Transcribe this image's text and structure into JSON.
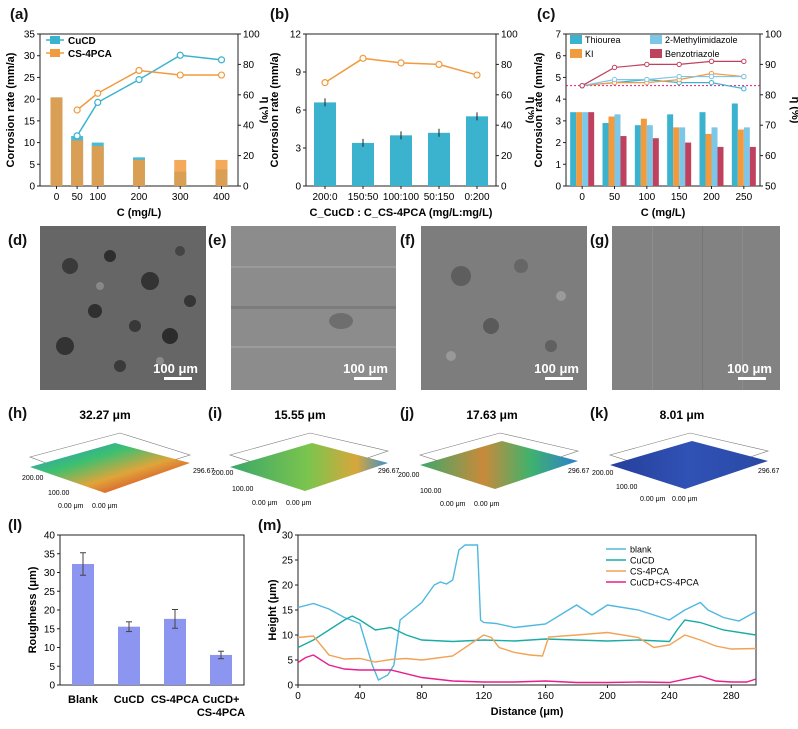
{
  "labels": {
    "a": "(a)",
    "b": "(b)",
    "c": "(c)",
    "d": "(d)",
    "e": "(e)",
    "f": "(f)",
    "g": "(g)",
    "h": "(h)",
    "i": "(i)",
    "j": "(j)",
    "k": "(k)",
    "l": "(l)",
    "m": "(m)"
  },
  "sem_scale": "100 μm",
  "surface3d": [
    {
      "height": "32.27 μm",
      "x": "296.67",
      "y": "200.00",
      "y2": "100.00",
      "origin": "0.00 μm",
      "origin2": "0.00 μm"
    },
    {
      "height": "15.55 μm",
      "x": "296.67",
      "y": "200.00",
      "y2": "100.00",
      "origin": "0.00 μm",
      "origin2": "0.00 μm"
    },
    {
      "height": "17.63 μm",
      "x": "296.67",
      "y": "200.00",
      "y2": "100.00",
      "origin": "0.00 μm",
      "origin2": "0.00 μm"
    },
    {
      "height": "8.01 μm",
      "x": "296.67",
      "y": "200.00",
      "y2": "100.00",
      "origin": "0.00 μm",
      "origin2": "0.00 μm"
    }
  ],
  "colors": {
    "teal": "#3bb3cf",
    "orange": "#f29a3e",
    "blue_bar": "#8c95ef",
    "red": "#c0415e",
    "pink": "#e8148a",
    "lightblue": "#7cc6e8"
  },
  "chart_data": [
    {
      "id": "a",
      "type": "bar",
      "xlabel": "C (mg/L)",
      "ylabel": "Corrosion rate (mm/a)",
      "y2label": "η (%)",
      "categories": [
        "0",
        "50",
        "100",
        "200",
        "300",
        "400"
      ],
      "x": [
        0,
        50,
        100,
        200,
        300,
        400
      ],
      "ylim": [
        0,
        35
      ],
      "y2lim": [
        0,
        100
      ],
      "xlim": [
        -40,
        440
      ],
      "yticks": [
        "0",
        "5",
        "10",
        "15",
        "20",
        "25",
        "30",
        "35"
      ],
      "y2ticks": [
        "0",
        "20",
        "40",
        "60",
        "80",
        "100"
      ],
      "legend": [
        "CuCD",
        "CS-4PCA"
      ],
      "series": [
        {
          "name": "CuCD",
          "bar_values": [
            20.4,
            11.5,
            10.0,
            6.6,
            3.3,
            3.8
          ],
          "eta": [
            null,
            33,
            55,
            70,
            86,
            83
          ]
        },
        {
          "name": "CS-4PCA",
          "bar_values": [
            20.4,
            10.5,
            9.2,
            6.0,
            6.0,
            6.0
          ],
          "eta": [
            null,
            50,
            61,
            76,
            73,
            73
          ]
        }
      ]
    },
    {
      "id": "b",
      "type": "bar",
      "xlabel": "C_CuCD : C_CS-4PCA (mg/L:mg/L)",
      "ylabel": "Corrosion rate (mm/a)",
      "y2label": "η (%)",
      "categories": [
        "200:0",
        "150:50",
        "100:100",
        "50:150",
        "0:200"
      ],
      "values": [
        6.6,
        3.4,
        4.0,
        4.2,
        5.5
      ],
      "eta": [
        68,
        84,
        81,
        80,
        73
      ],
      "ylim": [
        0,
        12
      ],
      "y2lim": [
        0,
        100
      ],
      "yticks": [
        "0",
        "3",
        "6",
        "9",
        "12"
      ],
      "y2ticks": [
        "0",
        "20",
        "40",
        "60",
        "80",
        "100"
      ]
    },
    {
      "id": "c",
      "type": "bar",
      "xlabel": "C (mg/L)",
      "ylabel": "Corrosion rate (mm/a)",
      "y2label": "η (%)",
      "categories": [
        "0",
        "50",
        "100",
        "150",
        "200",
        "250"
      ],
      "ylim": [
        0,
        7
      ],
      "y2lim": [
        50,
        100
      ],
      "yticks": [
        "0",
        "1",
        "2",
        "3",
        "4",
        "5",
        "6",
        "7"
      ],
      "y2ticks": [
        "50",
        "60",
        "70",
        "80",
        "90",
        "100"
      ],
      "reference_eta": 83,
      "series": [
        {
          "name": "Thiourea",
          "values": [
            3.4,
            2.9,
            2.8,
            3.3,
            3.4,
            3.8
          ],
          "eta": [
            83,
            84,
            85,
            84,
            84,
            82
          ]
        },
        {
          "name": "KI",
          "values": [
            3.4,
            3.2,
            3.1,
            2.7,
            2.4,
            2.6
          ],
          "eta": [
            83,
            84,
            84,
            85,
            87,
            86
          ]
        },
        {
          "name": "2-Methylimidazole",
          "values": [
            3.4,
            3.3,
            2.8,
            2.7,
            2.7,
            2.7
          ],
          "eta": [
            83,
            85,
            85,
            86,
            86,
            86
          ]
        },
        {
          "name": "Benzotriazole",
          "values": [
            3.4,
            2.3,
            2.2,
            2.0,
            1.8,
            1.8
          ],
          "eta": [
            83,
            89,
            90,
            90,
            91,
            91
          ]
        }
      ]
    },
    {
      "id": "l",
      "type": "bar",
      "ylabel": "Roughness (μm)",
      "categories": [
        "Blank",
        "CuCD",
        "CS-4PCA",
        "CuCD+\nCS-4PCA"
      ],
      "category_lines": [
        [
          "Blank"
        ],
        [
          "CuCD"
        ],
        [
          "CS-4PCA"
        ],
        [
          "CuCD+",
          "CS-4PCA"
        ]
      ],
      "values": [
        32.27,
        15.55,
        17.63,
        8.01
      ],
      "errors": [
        3,
        1.3,
        2.5,
        1.0
      ],
      "ylim": [
        0,
        40
      ],
      "yticks": [
        "0",
        "5",
        "10",
        "15",
        "20",
        "25",
        "30",
        "35",
        "40"
      ]
    },
    {
      "id": "m",
      "type": "line",
      "xlabel": "Distance (μm)",
      "ylabel": "Height (μm)",
      "xlim": [
        0,
        296
      ],
      "ylim": [
        0,
        30
      ],
      "xticks": [
        "0",
        "40",
        "80",
        "120",
        "160",
        "200",
        "240",
        "280"
      ],
      "yticks": [
        "0",
        "5",
        "10",
        "15",
        "20",
        "25",
        "30"
      ],
      "series": [
        {
          "name": "blank",
          "color": "#4fb8e0",
          "x": [
            0,
            10,
            20,
            30,
            40,
            48,
            52,
            58,
            62,
            66,
            72,
            80,
            88,
            92,
            96,
            100,
            104,
            108,
            112,
            116,
            118,
            120,
            128,
            140,
            160,
            180,
            190,
            200,
            220,
            240,
            250,
            260,
            265,
            275,
            285,
            296
          ],
          "y": [
            15.5,
            16.3,
            15.2,
            13.5,
            12.3,
            4,
            1,
            2,
            4,
            13,
            14.5,
            16.5,
            20,
            20.6,
            20.2,
            21,
            27,
            28,
            28,
            28,
            13,
            12.5,
            12.3,
            11.5,
            12.2,
            16,
            14,
            16,
            15,
            13,
            15,
            16.5,
            15,
            13.5,
            12.8,
            14.7
          ]
        },
        {
          "name": "CuCD",
          "color": "#1aaba7",
          "x": [
            0,
            10,
            20,
            30,
            35,
            40,
            50,
            60,
            70,
            80,
            100,
            120,
            140,
            160,
            180,
            200,
            220,
            240,
            245,
            250,
            260,
            275,
            296
          ],
          "y": [
            7.5,
            9,
            11,
            13,
            13.8,
            13,
            11,
            11.5,
            10,
            9,
            8.7,
            9,
            8.8,
            9.2,
            9,
            8.8,
            9,
            8.7,
            11,
            13,
            12.5,
            11,
            10
          ]
        },
        {
          "name": "CS-4PCA",
          "color": "#f2a256",
          "x": [
            0,
            10,
            20,
            30,
            40,
            50,
            60,
            70,
            80,
            100,
            120,
            125,
            130,
            140,
            150,
            158,
            162,
            180,
            200,
            220,
            230,
            240,
            250,
            260,
            270,
            280,
            296
          ],
          "y": [
            9.5,
            9.8,
            6,
            5.2,
            5.3,
            4.6,
            5.1,
            5.3,
            5,
            5.8,
            10,
            9.5,
            7.5,
            6.5,
            6,
            5.8,
            9.6,
            10,
            10.5,
            9.5,
            7.5,
            8,
            10,
            9,
            7.8,
            7.2,
            7.3
          ]
        },
        {
          "name": "CuCD+CS-4PCA",
          "color": "#e81e8c",
          "x": [
            0,
            5,
            10,
            20,
            30,
            40,
            60,
            80,
            100,
            120,
            140,
            160,
            180,
            200,
            220,
            240,
            260,
            270,
            280,
            290,
            296
          ],
          "y": [
            4.5,
            5.5,
            6,
            4,
            3.2,
            3,
            3,
            1.5,
            0.8,
            0.6,
            0.6,
            0.8,
            0.5,
            0.5,
            0.6,
            0.5,
            1.8,
            0.8,
            0.6,
            0.6,
            1.2
          ]
        }
      ]
    }
  ]
}
